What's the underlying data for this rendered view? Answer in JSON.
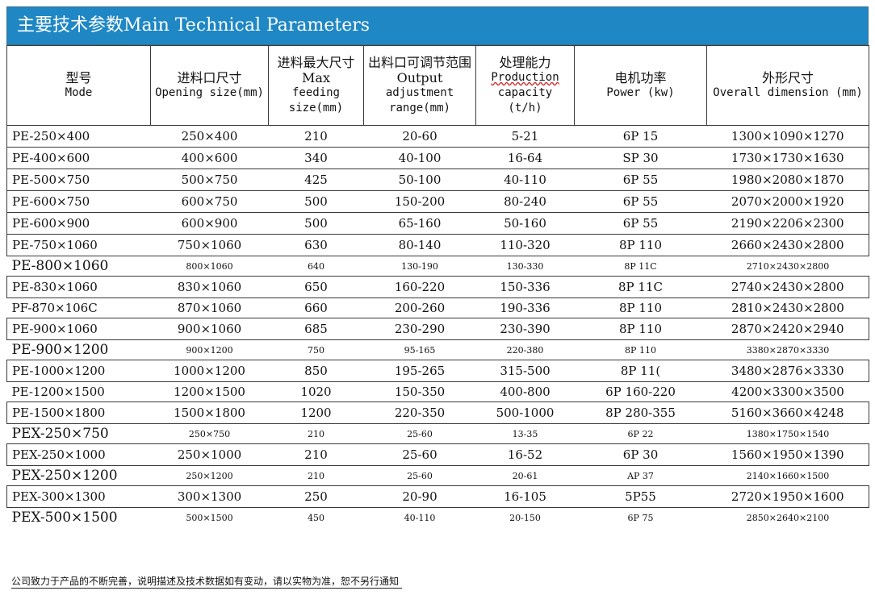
{
  "title": "主要技术参数Main Technical Parameters",
  "headers": [
    {
      "zh": "型号",
      "en": "Mode"
    },
    {
      "zh": "进料口尺寸",
      "en": "Opening size(mm)"
    },
    {
      "zh": "进料最大尺寸Max",
      "en": "feeding size(mm)"
    },
    {
      "zh": "出料口可调节范围Output",
      "en": "adjustment range(mm)"
    },
    {
      "zh": "处理能力",
      "en_wavy": "Production",
      "en": "capacity (t/h)"
    },
    {
      "zh": "电机功率",
      "en": "Power (kw)"
    },
    {
      "zh": "外形尺寸",
      "en": "Overall dimension (mm)"
    }
  ],
  "rows": [
    {
      "style": "boxed",
      "cells": [
        "PE-250×400",
        "250×400",
        "210",
        "20-60",
        "5-21",
        "6P 15",
        "1300×1090×1270"
      ]
    },
    {
      "style": "boxed",
      "cells": [
        "PE-400×600",
        "400×600",
        "340",
        "40-100",
        "16-64",
        "SP 30",
        "1730×1730×1630"
      ]
    },
    {
      "style": "boxed",
      "cells": [
        "PE-500×750",
        "500×750",
        "425",
        "50-100",
        "40-110",
        "6P 55",
        "1980×2080×1870"
      ]
    },
    {
      "style": "boxed",
      "cells": [
        "PE-600×750",
        "600×750",
        "500",
        "150-200",
        "80-240",
        "6P 55",
        "2070×2000×1920"
      ]
    },
    {
      "style": "boxed",
      "cells": [
        "PE-600×900",
        "600×900",
        "500",
        "65-160",
        "50-160",
        "6P 55",
        "2190×2206×2300"
      ]
    },
    {
      "style": "boxed",
      "cells": [
        "PE-750×1060",
        "750×1060",
        "630",
        "80-140",
        "110-320",
        "8P 110",
        "2660×2430×2800"
      ]
    },
    {
      "style": "plain",
      "cells": [
        "PE-800×1060",
        "800×1060",
        "640",
        "130-190",
        "130-330",
        "8P 11C",
        "2710×2430×2800"
      ]
    },
    {
      "style": "boxed",
      "cells": [
        "PE-830×1060",
        "830×1060",
        "650",
        "160-220",
        "150-336",
        "8P 11C",
        "2740×2430×2800"
      ]
    },
    {
      "style": "plain-large",
      "cells": [
        "PF-870×106C",
        "870×1060",
        "660",
        "200-260",
        "190-336",
        "8P 110",
        "2810×2430×2800"
      ]
    },
    {
      "style": "boxed",
      "cells": [
        "PE-900×1060",
        "900×1060",
        "685",
        "230-290",
        "230-390",
        "8P 110",
        "2870×2420×2940"
      ]
    },
    {
      "style": "plain",
      "cells": [
        "PE-900×1200",
        "900×1200",
        "750",
        "95-165",
        "220-380",
        "8P 110",
        "3380×2870×3330"
      ]
    },
    {
      "style": "boxed",
      "cells": [
        "PE-1000×1200",
        "1000×1200",
        "850",
        "195-265",
        "315-500",
        "8P 11(",
        "3480×2876×3330"
      ]
    },
    {
      "style": "plain-large",
      "cells": [
        "PE-1200×1500",
        "1200×1500",
        "1020",
        "150-350",
        "400-800",
        "6P 160-220",
        "4200×3300×3500"
      ]
    },
    {
      "style": "boxed",
      "cells": [
        "PE-1500×1800",
        "1500×1800",
        "1200",
        "220-350",
        "500-1000",
        "8P 280-355",
        "5160×3660×4248"
      ]
    },
    {
      "style": "plain",
      "cells": [
        "PEX-250×750",
        "250×750",
        "210",
        "25-60",
        "13-35",
        "6P 22",
        "1380×1750×1540"
      ]
    },
    {
      "style": "boxed",
      "cells": [
        "PEX-250×1000",
        "250×1000",
        "210",
        "25-60",
        "16-52",
        "6P 30",
        "1560×1950×1390"
      ]
    },
    {
      "style": "plain",
      "cells": [
        "PEX-250×1200",
        "250×1200",
        "210",
        "25-60",
        "20-61",
        "AP 37",
        "2140×1660×1500"
      ]
    },
    {
      "style": "boxed",
      "cells": [
        "PEX-300×1300",
        "300×1300",
        "250",
        "20-90",
        "16-105",
        "5P55",
        "2720×1950×1600"
      ]
    },
    {
      "style": "plain",
      "cells": [
        "PEX-500×1500",
        "500×1500",
        "450",
        "40-110",
        "20-150",
        "6P 75",
        "2850×2640×2100"
      ]
    }
  ],
  "footer": "公司致力于产品的不断完善，说明描述及技术数据如有变动，请以实物为准，恕不另行通知"
}
